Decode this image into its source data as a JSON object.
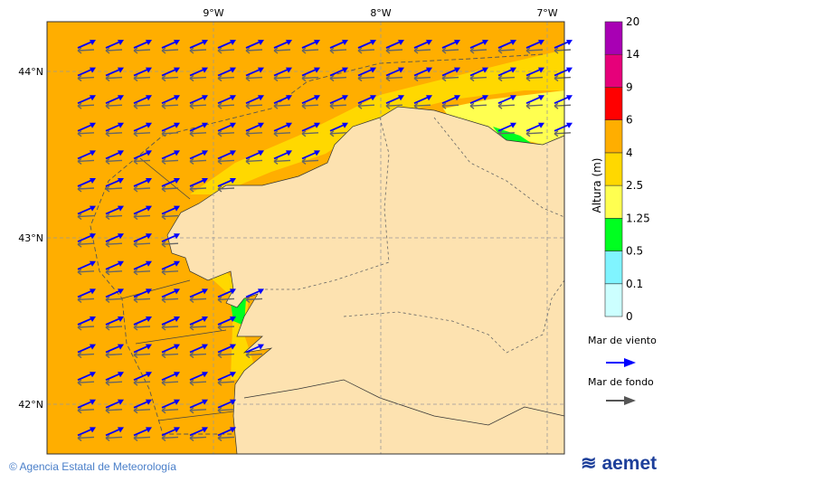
{
  "map": {
    "lon_ticks": [
      "9°W",
      "8°W",
      "7°W"
    ],
    "lat_ticks": [
      "44°N",
      "43°N",
      "42°N"
    ],
    "colors": {
      "sea_main": "#ffae00",
      "land": "#fde2b0",
      "gold": "#ffd800",
      "yellow": "#ffff50",
      "green": "#00ff20",
      "cyan": "#80f4ff",
      "wind_arrow": "#0000ff",
      "swell_arrow": "#555555"
    }
  },
  "colorbar": {
    "title": "Altura (m)",
    "levels": [
      "0",
      "0.1",
      "0.5",
      "1.25",
      "2.5",
      "4",
      "6",
      "9",
      "14",
      "20"
    ],
    "colors": [
      "#ccffff",
      "#80f4ff",
      "#00ff20",
      "#ffff50",
      "#ffd800",
      "#ffae00",
      "#ff0000",
      "#e6007a",
      "#a800b4"
    ]
  },
  "legend": {
    "wind_sea_label": "Mar de viento",
    "swell_label": "Mar de fondo",
    "wind_sea_icon": "blue-arrow-icon",
    "swell_icon": "grey-arrow-icon"
  },
  "footer": {
    "credit": "© Agencia Estatal de Meteorología",
    "logo": "aemet"
  }
}
